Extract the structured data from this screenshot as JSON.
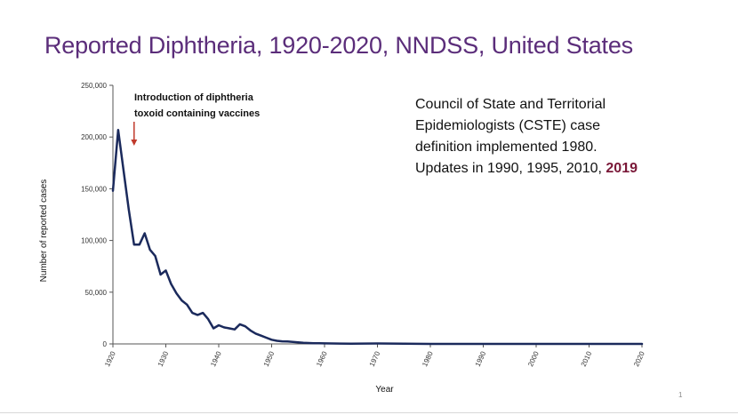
{
  "slide": {
    "title": "Reported Diphtheria, 1920-2020, NNDSS, United States",
    "note_lines": [
      "Council of State and Territorial",
      "Epidemiologists (CSTE) case",
      "definition implemented 1980.",
      "Updates in 1990, 1995, 2010, "
    ],
    "note_highlight": "2019",
    "page_number": "1"
  },
  "colors": {
    "title": "#5b2d7a",
    "line": "#1b2a5c",
    "arrow": "#c0392b",
    "highlight": "#7a1838"
  },
  "chart_data": {
    "type": "line",
    "title": "",
    "xlabel": "Year",
    "ylabel": "Number of reported cases",
    "xlim": [
      1920,
      2020
    ],
    "ylim": [
      0,
      250000
    ],
    "x_ticks": [
      1920,
      1930,
      1940,
      1950,
      1960,
      1970,
      1980,
      1990,
      2000,
      2010,
      2020
    ],
    "y_ticks": [
      0,
      50000,
      100000,
      150000,
      200000,
      250000
    ],
    "y_tick_labels": [
      "0",
      "50,000",
      "100,000",
      "150,000",
      "200,000",
      "250,000"
    ],
    "grid": false,
    "annotations": [
      {
        "text_lines": [
          "Introduction of diphtheria",
          "toxoid containing vaccines"
        ],
        "x": 1924,
        "arrow": "down"
      }
    ],
    "series": [
      {
        "x": [
          1920,
          1921,
          1922,
          1923,
          1924,
          1925,
          1926,
          1927,
          1928,
          1929,
          1930,
          1931,
          1932,
          1933,
          1934,
          1935,
          1936,
          1937,
          1938,
          1939,
          1940,
          1941,
          1942,
          1943,
          1944,
          1945,
          1946,
          1947,
          1948,
          1949,
          1950,
          1951,
          1952,
          1953,
          1954,
          1955,
          1956,
          1957,
          1958,
          1959,
          1960,
          1965,
          1970,
          1975,
          1980,
          1990,
          2000,
          2010,
          2020
        ],
        "y": [
          148000,
          206900,
          168000,
          130000,
          96000,
          96000,
          107000,
          91000,
          85000,
          67000,
          71000,
          58000,
          49000,
          42000,
          38000,
          30000,
          28000,
          30000,
          24000,
          15000,
          18000,
          16000,
          15000,
          14000,
          19000,
          17000,
          13000,
          10000,
          8000,
          6000,
          4000,
          3000,
          2500,
          2300,
          2000,
          1500,
          1000,
          900,
          700,
          600,
          500,
          160,
          400,
          300,
          10,
          4,
          1,
          0,
          0
        ]
      }
    ]
  }
}
